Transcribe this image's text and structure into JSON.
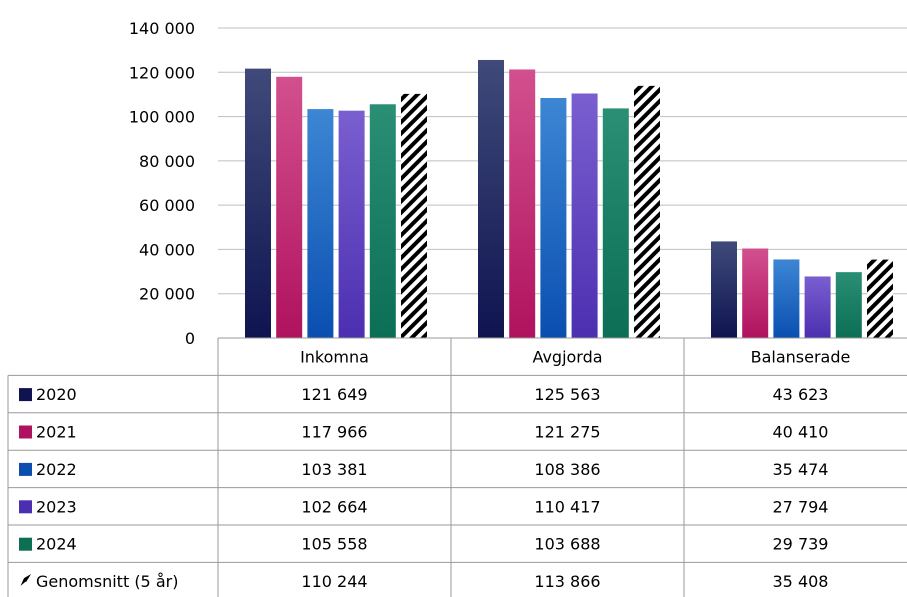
{
  "chart_data": {
    "type": "bar",
    "categories": [
      "Inkomna",
      "Avgjorda",
      "Balanserade"
    ],
    "ylim": [
      0,
      140000
    ],
    "yticks": [
      "0",
      "20 000",
      "40 000",
      "60 000",
      "80 000",
      "100 000",
      "120 000",
      "140 000"
    ],
    "ytick_values": [
      0,
      20000,
      40000,
      60000,
      80000,
      100000,
      120000,
      140000
    ],
    "grid": true,
    "legend": "data-table",
    "series": [
      {
        "name": "2020",
        "values": [
          121649,
          125563,
          43623
        ],
        "labels": [
          "121 649",
          "125 563",
          "43 623"
        ],
        "color_top": "#3f4a7a",
        "color_bottom": "#0f1450",
        "pattern": "gradient"
      },
      {
        "name": "2021",
        "values": [
          117966,
          121275,
          40410
        ],
        "labels": [
          "117 966",
          "121 275",
          "40 410"
        ],
        "color_top": "#d2508e",
        "color_bottom": "#b0125e",
        "pattern": "gradient"
      },
      {
        "name": "2022",
        "values": [
          103381,
          108386,
          35474
        ],
        "labels": [
          "103 381",
          "108 386",
          "35 474"
        ],
        "color_top": "#3d86d4",
        "color_bottom": "#0a4fb0",
        "pattern": "gradient"
      },
      {
        "name": "2023",
        "values": [
          102664,
          110417,
          27794
        ],
        "labels": [
          "102 664",
          "110 417",
          "27 794"
        ],
        "color_top": "#7a5fd0",
        "color_bottom": "#4b2fb0",
        "pattern": "gradient"
      },
      {
        "name": "2024",
        "values": [
          105558,
          103688,
          29739
        ],
        "labels": [
          "105 558",
          "103 688",
          "29 739"
        ],
        "color_top": "#2a8f74",
        "color_bottom": "#0b6e55",
        "pattern": "gradient"
      },
      {
        "name": "Genomsnitt (5 år)",
        "values": [
          110244,
          113866,
          35408
        ],
        "labels": [
          "110 244",
          "113 866",
          "35 408"
        ],
        "color_top": "#000000",
        "color_bottom": "#000000",
        "pattern": "hatch"
      }
    ]
  }
}
